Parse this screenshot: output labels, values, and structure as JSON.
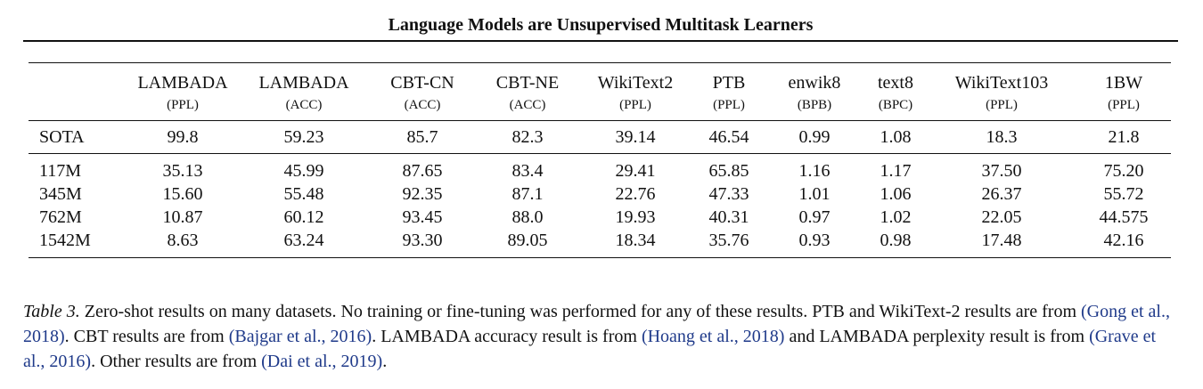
{
  "header": {
    "title": "Language Models are Unsupervised Multitask Learners"
  },
  "table": {
    "columns": [
      {
        "name": "LAMBADA",
        "unit": "(PPL)"
      },
      {
        "name": "LAMBADA",
        "unit": "(ACC)"
      },
      {
        "name": "CBT-CN",
        "unit": "(ACC)"
      },
      {
        "name": "CBT-NE",
        "unit": "(ACC)"
      },
      {
        "name": "WikiText2",
        "unit": "(PPL)"
      },
      {
        "name": "PTB",
        "unit": "(PPL)"
      },
      {
        "name": "enwik8",
        "unit": "(BPB)"
      },
      {
        "name": "text8",
        "unit": "(BPC)"
      },
      {
        "name": "WikiText103",
        "unit": "(PPL)"
      },
      {
        "name": "1BW",
        "unit": "(PPL)"
      }
    ],
    "sota": {
      "label": "SOTA",
      "values": [
        "99.8",
        "59.23",
        "85.7",
        "82.3",
        "39.14",
        "46.54",
        "0.99",
        "1.08",
        "18.3",
        "21.8"
      ],
      "bold": [
        false,
        false,
        false,
        false,
        false,
        false,
        false,
        false,
        false,
        true
      ]
    },
    "rows": [
      {
        "label": "117M",
        "values": [
          "35.13",
          "45.99",
          "87.65",
          "83.4",
          "29.41",
          "65.85",
          "1.16",
          "1.17",
          "37.50",
          "75.20"
        ],
        "bold": [
          true,
          false,
          true,
          true,
          true,
          false,
          false,
          false,
          false,
          false
        ]
      },
      {
        "label": "345M",
        "values": [
          "15.60",
          "55.48",
          "92.35",
          "87.1",
          "22.76",
          "47.33",
          "1.01",
          "1.06",
          "26.37",
          "55.72"
        ],
        "bold": [
          true,
          false,
          true,
          true,
          true,
          false,
          false,
          true,
          false,
          false
        ]
      },
      {
        "label": "762M",
        "values": [
          "10.87",
          "60.12",
          "93.45",
          "88.0",
          "19.93",
          "40.31",
          "0.97",
          "1.02",
          "22.05",
          "44.575"
        ],
        "bold": [
          true,
          true,
          true,
          true,
          true,
          true,
          true,
          true,
          false,
          false
        ]
      },
      {
        "label": "1542M",
        "values": [
          "8.63",
          "63.24",
          "93.30",
          "89.05",
          "18.34",
          "35.76",
          "0.93",
          "0.98",
          "17.48",
          "42.16"
        ],
        "bold": [
          true,
          true,
          true,
          true,
          true,
          true,
          true,
          true,
          true,
          false
        ]
      }
    ]
  },
  "caption": {
    "lead": "Table 3.",
    "t1": " Zero-shot results on many datasets.  No training or fine-tuning was performed for any of these results.  PTB and WikiText-2 results are from ",
    "c1": "(Gong et al., 2018)",
    "t2": ". CBT results are from ",
    "c2": "(Bajgar et al., 2016)",
    "t3": ". LAMBADA accuracy result is from ",
    "c3": "(Hoang et al., 2018)",
    "t4": " and LAMBADA perplexity result is from ",
    "c4": "(Grave et al., 2016)",
    "t5": ". Other results are from ",
    "c5": "(Dai et al., 2019)",
    "t6": "."
  },
  "colors": {
    "text": "#111111",
    "citation": "#1f3a8a"
  }
}
